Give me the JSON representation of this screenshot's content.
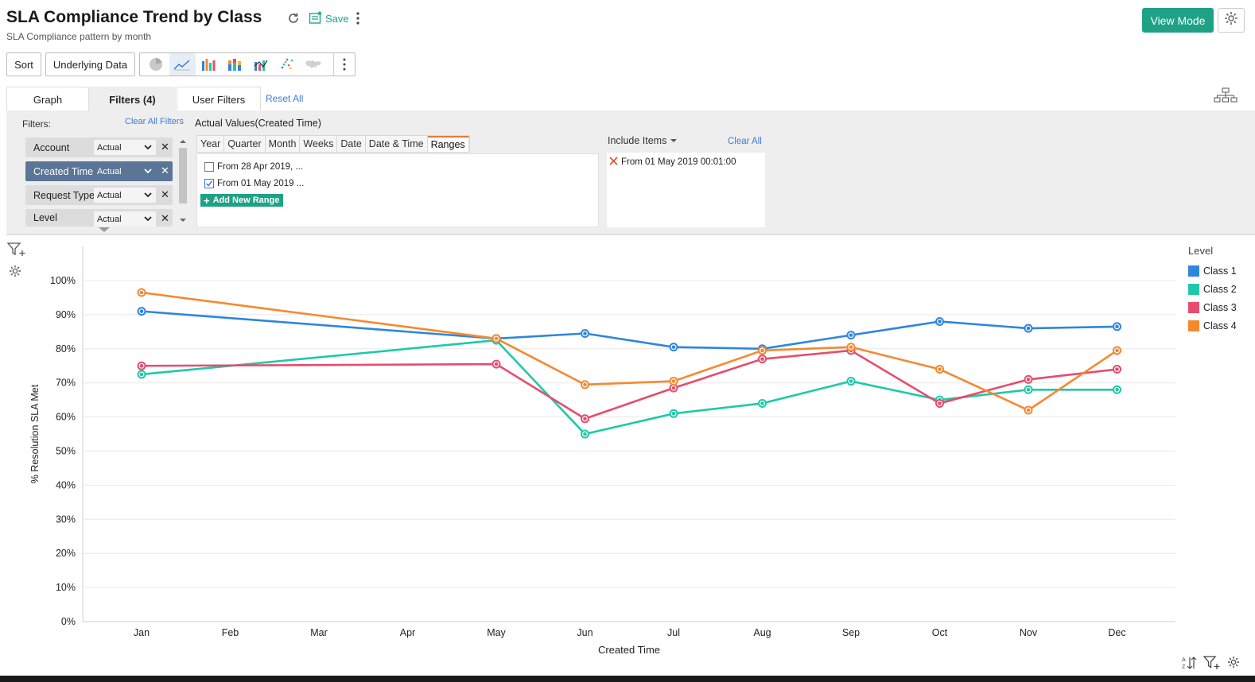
{
  "header": {
    "title": "SLA Compliance Trend by Class",
    "subtitle": "SLA Compliance pattern by month",
    "save_label": "Save",
    "view_mode_label": "View Mode"
  },
  "toolbar": {
    "sort_label": "Sort",
    "underlying_data_label": "Underlying Data",
    "chart_types": [
      "pie-chart-icon",
      "line-chart-icon",
      "bar-chart-icon",
      "stacked-bar-icon",
      "combo-chart-icon",
      "scatter-chart-icon",
      "map-chart-icon"
    ]
  },
  "tabs": {
    "graph": "Graph",
    "filters": "Filters (4)",
    "user_filters": "User Filters",
    "reset_all": "Reset All"
  },
  "filters": {
    "label": "Filters:",
    "clear_all_filters": "Clear All Filters",
    "items": [
      {
        "name": "Account",
        "mode": "Actual"
      },
      {
        "name": "Created Time",
        "mode": "Actual"
      },
      {
        "name": "Request Type",
        "mode": "Actual"
      },
      {
        "name": "Level",
        "mode": "Actual"
      }
    ],
    "actual_values_title": "Actual Values(Created Time)",
    "granularity_tabs": [
      "Year",
      "Quarter",
      "Month",
      "Weeks",
      "Date",
      "Date & Time",
      "Ranges"
    ],
    "ranges": [
      {
        "label": "From 28 Apr 2019, ...",
        "checked": false
      },
      {
        "label": "From 01 May 2019 ...",
        "checked": true
      }
    ],
    "add_new_range": "Add New Range",
    "include_items_label": "Include Items",
    "clear_all": "Clear All",
    "included": [
      "From 01 May 2019 00:01:00"
    ]
  },
  "chart_data": {
    "type": "line",
    "title": "SLA Compliance Trend by Class",
    "xlabel": "Created Time",
    "ylabel": "% Resolution SLA Met",
    "ylim": [
      0,
      100
    ],
    "yticks": [
      "0%",
      "10%",
      "20%",
      "30%",
      "40%",
      "50%",
      "60%",
      "70%",
      "80%",
      "90%",
      "100%"
    ],
    "categories": [
      "Jan",
      "Feb",
      "Mar",
      "Apr",
      "May",
      "Jun",
      "Jul",
      "Aug",
      "Sep",
      "Oct",
      "Nov",
      "Dec"
    ],
    "legend_title": "Level",
    "series": [
      {
        "name": "Class 1",
        "color": "#2e86de",
        "values": [
          91,
          null,
          null,
          null,
          83,
          84.5,
          80.5,
          80,
          84,
          88,
          86,
          86.5
        ]
      },
      {
        "name": "Class 2",
        "color": "#1ec9a8",
        "values": [
          72.5,
          null,
          null,
          null,
          82.5,
          55,
          61,
          64,
          70.5,
          65,
          68,
          68
        ]
      },
      {
        "name": "Class 3",
        "color": "#e64c6e",
        "values": [
          75,
          null,
          null,
          null,
          75.5,
          59.5,
          68.5,
          77,
          79.5,
          64,
          71,
          74
        ]
      },
      {
        "name": "Class 4",
        "color": "#f5892f",
        "values": [
          96.5,
          null,
          null,
          null,
          83,
          69.5,
          70.5,
          79.5,
          80.5,
          74,
          62,
          79.5
        ]
      }
    ]
  }
}
